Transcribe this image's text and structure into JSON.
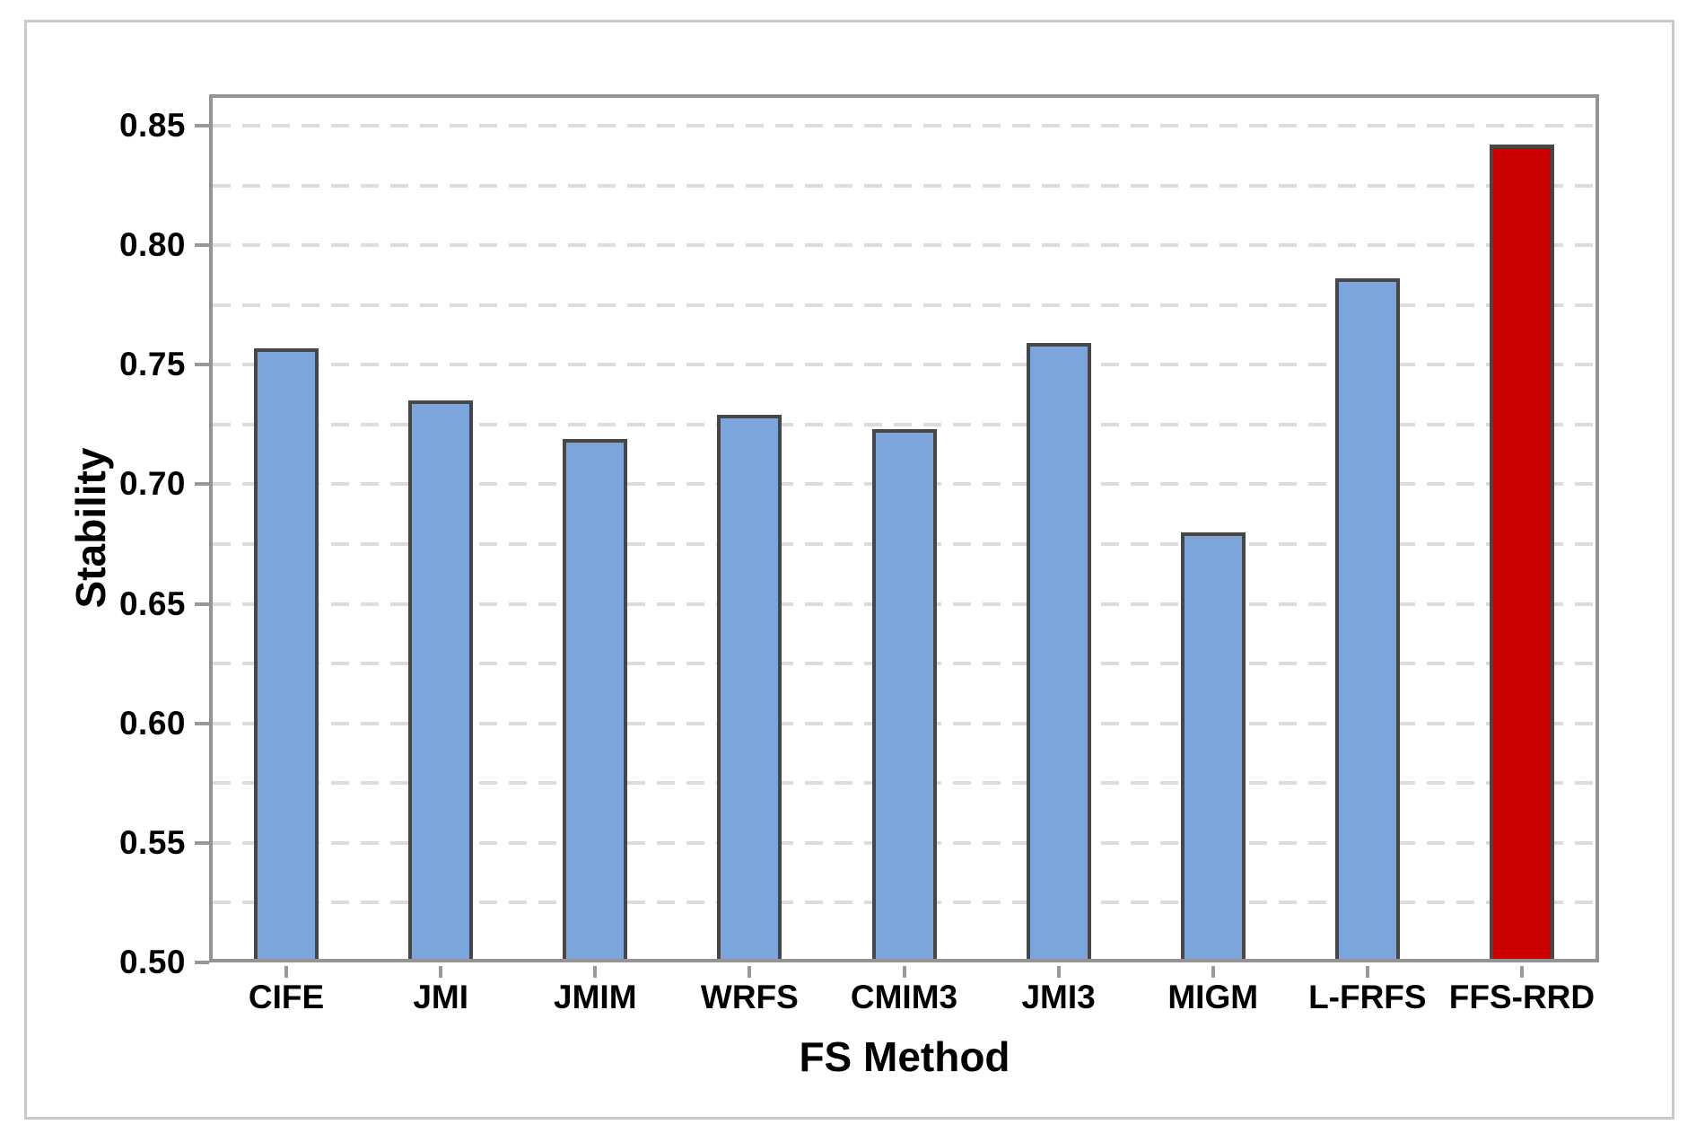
{
  "chart_data": {
    "type": "bar",
    "title": "",
    "xlabel": "FS Method",
    "ylabel": "Stability",
    "categories": [
      "CIFE",
      "JMI",
      "JMIM",
      "WRFS",
      "CMIM3",
      "JMI3",
      "MIGM",
      "L-FRFS",
      "FFS-RRD"
    ],
    "values": [
      0.757,
      0.735,
      0.719,
      0.729,
      0.723,
      0.759,
      0.68,
      0.786,
      0.842
    ],
    "highlight_category": "FFS-RRD",
    "bar_colors": [
      "#7CA5DB",
      "#7CA5DB",
      "#7CA5DB",
      "#7CA5DB",
      "#7CA5DB",
      "#7CA5DB",
      "#7CA5DB",
      "#7CA5DB",
      "#CC0000"
    ],
    "ylim": [
      0.5,
      0.85
    ],
    "ytick_labels": [
      "0.85",
      "0.80",
      "0.75",
      "0.70",
      "0.65",
      "0.60",
      "0.55",
      "0.50"
    ],
    "ytick_step": 0.05,
    "gridline_step": 0.025,
    "grid": "horizontal-dashed",
    "legend": "none"
  },
  "colors": {
    "bar_default": "#7CA5DB",
    "bar_highlight": "#CC0000",
    "bar_border": "#474747",
    "plot_border": "#949494",
    "tick_mark": "#989898",
    "gridline": "#DCDCDC",
    "figure_frame": "#C9C9C9",
    "text": "#000000",
    "background": "#FFFFFF"
  }
}
